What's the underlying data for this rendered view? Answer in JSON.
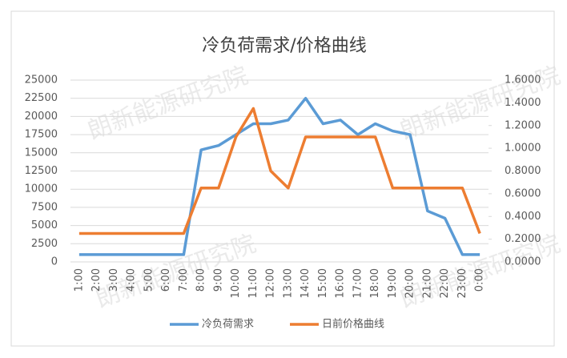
{
  "chart_data": {
    "type": "line",
    "title": "冷负荷需求/价格曲线",
    "watermark": "朗新能源研究院",
    "categories": [
      "1:00",
      "2:00",
      "3:00",
      "4:00",
      "5:00",
      "6:00",
      "7:00",
      "8:00",
      "9:00",
      "10:00",
      "11:00",
      "12:00",
      "13:00",
      "14:00",
      "15:00",
      "16:00",
      "17:00",
      "18:00",
      "19:00",
      "20:00",
      "21:00",
      "22:00",
      "23:00",
      "0:00"
    ],
    "series": [
      {
        "name": "冷负荷需求",
        "color": "#5b9bd5",
        "values": [
          1000,
          1000,
          1000,
          1000,
          1000,
          1000,
          1000,
          15400,
          16000,
          17500,
          19000,
          19000,
          19500,
          22500,
          19000,
          19500,
          17500,
          19000,
          18000,
          17500,
          7000,
          6000,
          1000,
          1000
        ]
      },
      {
        "name": "日前价格曲线",
        "color": "#ed7d31",
        "axis": "y2",
        "values": [
          0.25,
          0.25,
          0.25,
          0.25,
          0.25,
          0.25,
          0.25,
          0.65,
          0.65,
          1.1,
          1.35,
          0.8,
          0.65,
          1.1,
          1.1,
          1.1,
          1.1,
          1.1,
          0.65,
          0.65,
          0.65,
          0.65,
          0.65,
          0.25
        ]
      }
    ],
    "ylim": [
      0,
      25000
    ],
    "yticks": [
      0,
      2500,
      5000,
      7500,
      10000,
      12500,
      15000,
      17500,
      20000,
      22500,
      25000
    ],
    "y2lim": [
      0,
      1.6
    ],
    "y2ticks": [
      {
        "value": 0,
        "label": "0.0000"
      },
      {
        "value": 0.2,
        "label": "0.2000"
      },
      {
        "value": 0.4,
        "label": "0.4000"
      },
      {
        "value": 0.6,
        "label": "0.6000"
      },
      {
        "value": 0.8,
        "label": "0.8000"
      },
      {
        "value": 1.0,
        "label": "1.0000"
      },
      {
        "value": 1.2,
        "label": "1.2000"
      },
      {
        "value": 1.4,
        "label": "1.4000"
      },
      {
        "value": 1.6,
        "label": "1.6000"
      }
    ],
    "grid": true,
    "legend": "bottom"
  }
}
